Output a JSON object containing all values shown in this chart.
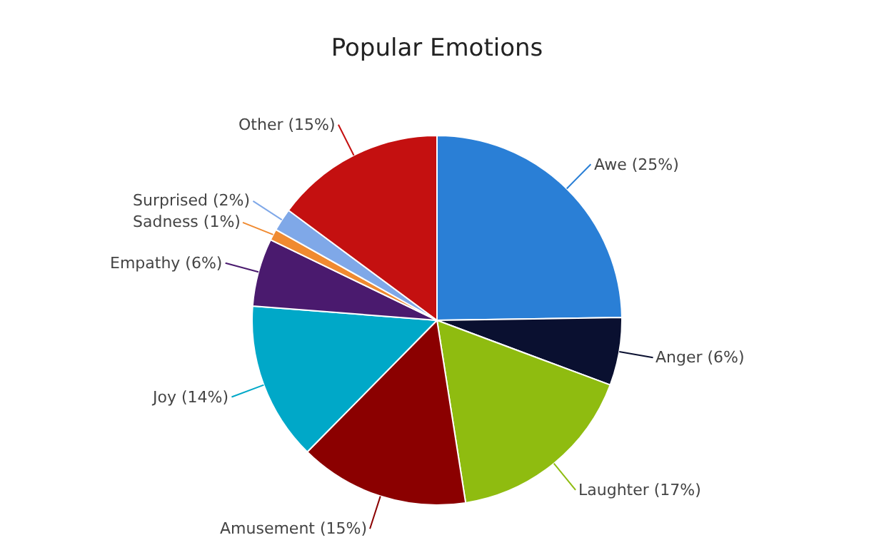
{
  "chart_data": {
    "type": "pie",
    "title": "Popular Emotions",
    "categories": [
      "Awe",
      "Anger",
      "Laughter",
      "Amusement",
      "Joy",
      "Empathy",
      "Sadness",
      "Surprised",
      "Other"
    ],
    "values": [
      25,
      6,
      17,
      15,
      14,
      6,
      1,
      2,
      15
    ],
    "value_labels": [
      "(25%)",
      "(6%)",
      "(17%)",
      "(15%)",
      "(14%)",
      "(6%)",
      "(1%)",
      "(2%)",
      "(15%)"
    ],
    "colors": [
      "#2a7fd6",
      "#0a1030",
      "#8fbc10",
      "#8b0000",
      "#00a8c8",
      "#4a1a6e",
      "#f08a30",
      "#7fa8e8",
      "#c41010"
    ],
    "legend": false
  }
}
